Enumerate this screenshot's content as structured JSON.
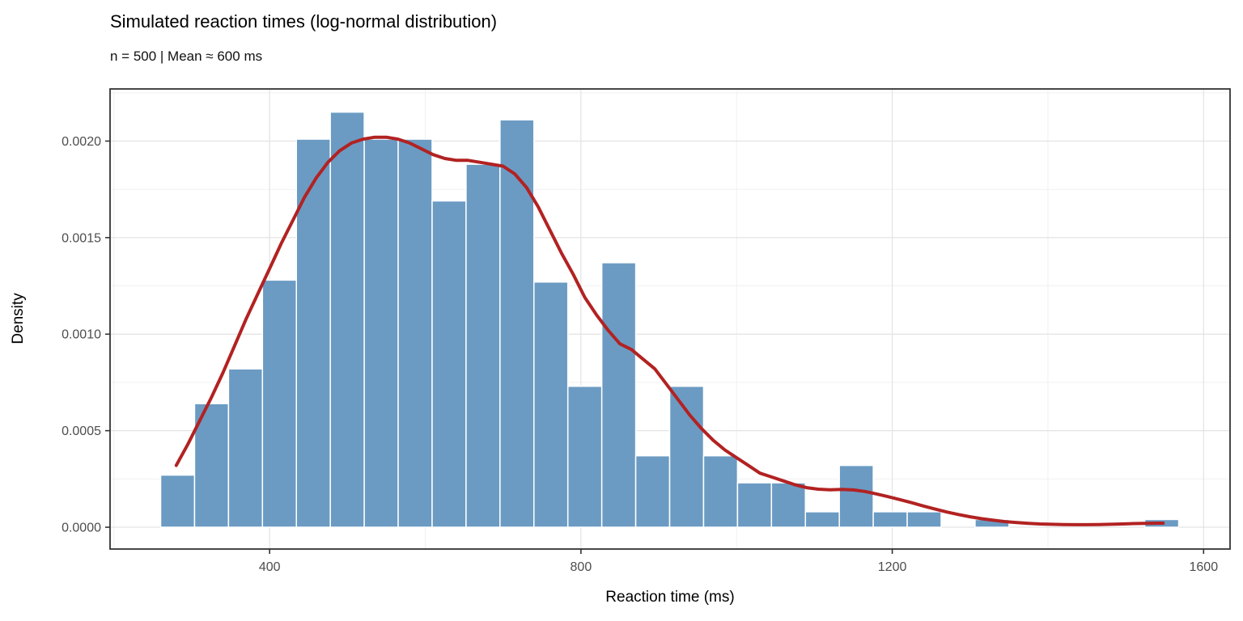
{
  "chart_data": {
    "type": "bar",
    "subtype": "histogram-with-density-curve",
    "title": "Simulated reaction times (log-normal distribution)",
    "subtitle": "n = 500 | Mean ≈ 600 ms",
    "xlabel": "Reaction time (ms)",
    "ylabel": "Density",
    "xlim": [
      195,
      1634
    ],
    "ylim": [
      -0.000113,
      0.00227
    ],
    "grid": "on",
    "legend": "none",
    "x_ticks": {
      "values": [
        400,
        800,
        1200,
        1600
      ],
      "labels": [
        "400",
        "800",
        "1200",
        "1600"
      ],
      "minor": [
        200,
        600,
        1000,
        1400
      ]
    },
    "y_ticks": {
      "values": [
        0,
        0.0005,
        0.001,
        0.0015,
        0.002
      ],
      "labels": [
        "0.0000",
        "0.0005",
        "0.0010",
        "0.0015",
        "0.0020"
      ],
      "minor": [
        0.00025,
        0.00075,
        0.00125,
        0.00175,
        0.00225
      ]
    },
    "histogram": {
      "bin_start": 260,
      "bin_width": 43.6,
      "densities": [
        0.00027,
        0.00064,
        0.00082,
        0.00128,
        0.00201,
        0.00215,
        0.00201,
        0.00201,
        0.00169,
        0.00188,
        0.00211,
        0.00127,
        0.00073,
        0.00137,
        0.00037,
        0.00073,
        0.00037,
        0.00023,
        0.00023,
        8e-05,
        0.00032,
        8e-05,
        8e-05,
        0,
        4e-05,
        0,
        0,
        0,
        0,
        4e-05
      ]
    },
    "density_curve": {
      "points": [
        [
          280,
          0.00032
        ],
        [
          295,
          0.00043
        ],
        [
          310,
          0.00055
        ],
        [
          325,
          0.00067
        ],
        [
          340,
          0.0008
        ],
        [
          355,
          0.00094
        ],
        [
          370,
          0.00108
        ],
        [
          385,
          0.00121
        ],
        [
          400,
          0.00134
        ],
        [
          415,
          0.00147
        ],
        [
          430,
          0.00159
        ],
        [
          445,
          0.00171
        ],
        [
          460,
          0.00181
        ],
        [
          475,
          0.00189
        ],
        [
          490,
          0.00195
        ],
        [
          505,
          0.00199
        ],
        [
          520,
          0.00201
        ],
        [
          535,
          0.00202
        ],
        [
          550,
          0.00202
        ],
        [
          565,
          0.00201
        ],
        [
          580,
          0.00199
        ],
        [
          595,
          0.00196
        ],
        [
          610,
          0.00193
        ],
        [
          625,
          0.00191
        ],
        [
          640,
          0.0019
        ],
        [
          655,
          0.0019
        ],
        [
          670,
          0.00189
        ],
        [
          685,
          0.00188
        ],
        [
          700,
          0.00187
        ],
        [
          715,
          0.00183
        ],
        [
          730,
          0.00176
        ],
        [
          745,
          0.00166
        ],
        [
          760,
          0.00154
        ],
        [
          775,
          0.00142
        ],
        [
          790,
          0.00131
        ],
        [
          805,
          0.00119
        ],
        [
          820,
          0.0011
        ],
        [
          835,
          0.00102
        ],
        [
          850,
          0.00095
        ],
        [
          865,
          0.00092
        ],
        [
          880,
          0.00087
        ],
        [
          895,
          0.00082
        ],
        [
          910,
          0.00074
        ],
        [
          925,
          0.00066
        ],
        [
          940,
          0.00058
        ],
        [
          955,
          0.00051
        ],
        [
          970,
          0.00045
        ],
        [
          985,
          0.0004
        ],
        [
          1000,
          0.00036
        ],
        [
          1015,
          0.00032
        ],
        [
          1030,
          0.00028
        ],
        [
          1045,
          0.00026
        ],
        [
          1060,
          0.00024
        ],
        [
          1075,
          0.00022
        ],
        [
          1090,
          0.000205
        ],
        [
          1105,
          0.000197
        ],
        [
          1120,
          0.000194
        ],
        [
          1135,
          0.000196
        ],
        [
          1150,
          0.000193
        ],
        [
          1165,
          0.000185
        ],
        [
          1180,
          0.000172
        ],
        [
          1195,
          0.000158
        ],
        [
          1210,
          0.000143
        ],
        [
          1225,
          0.000127
        ],
        [
          1240,
          0.00011
        ],
        [
          1255,
          9.4e-05
        ],
        [
          1270,
          7.9e-05
        ],
        [
          1285,
          6.6e-05
        ],
        [
          1300,
          5.4e-05
        ],
        [
          1315,
          4.4e-05
        ],
        [
          1330,
          3.6e-05
        ],
        [
          1345,
          2.9e-05
        ],
        [
          1360,
          2.4e-05
        ],
        [
          1375,
          2e-05
        ],
        [
          1390,
          1.7e-05
        ],
        [
          1405,
          1.5e-05
        ],
        [
          1420,
          1.4e-05
        ],
        [
          1435,
          1.3e-05
        ],
        [
          1450,
          1.3e-05
        ],
        [
          1465,
          1.4e-05
        ],
        [
          1480,
          1.5e-05
        ],
        [
          1495,
          1.7e-05
        ],
        [
          1510,
          1.9e-05
        ],
        [
          1525,
          2e-05
        ],
        [
          1540,
          2.1e-05
        ],
        [
          1548,
          2.1e-05
        ]
      ]
    },
    "colors": {
      "bar_fill": "#6B9BC3",
      "bar_stroke": "#FFFFFF",
      "curve": "#B22222",
      "grid_major": "#E3E3E3",
      "grid_minor": "#EFEFEF",
      "panel_border": "#333333",
      "tick_mark": "#333333",
      "tick_label": "#4D4D4D",
      "background": "#FFFFFF"
    }
  }
}
